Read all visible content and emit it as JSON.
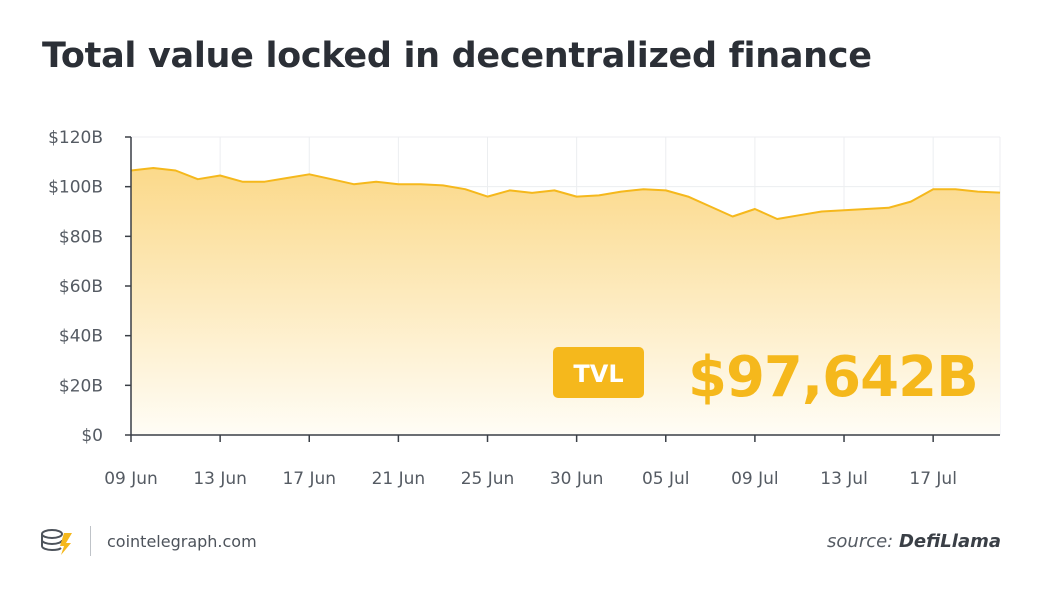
{
  "title": "Total value locked in decentralized finance",
  "badge_label": "TVL",
  "headline_value": "$97,642B",
  "footer": {
    "site": "cointelegraph.com",
    "source_prefix": "source:",
    "source_name": "DefiLlama"
  },
  "colors": {
    "line": "#f5b81c",
    "fill_top": "#fbd98a",
    "fill_bottom": "#fffdf6",
    "badge": "#f5b81c",
    "headline": "#f5b81c"
  },
  "chart_data": {
    "type": "area",
    "title": "Total value locked in decentralized finance",
    "xlabel": "",
    "ylabel": "",
    "ylim": [
      0,
      120
    ],
    "y_unit": "billions USD",
    "y_ticks": [
      0,
      20,
      40,
      60,
      80,
      100,
      120
    ],
    "y_tick_labels": [
      "$0",
      "$20B",
      "$40B",
      "$60B",
      "$80B",
      "$100B",
      "$120B"
    ],
    "x_tick_labels": [
      "09 Jun",
      "13 Jun",
      "17 Jun",
      "21 Jun",
      "25 Jun",
      "30 Jun",
      "05 Jul",
      "09 Jul",
      "13 Jul",
      "17 Jul"
    ],
    "x_tick_day_index": [
      0,
      4,
      8,
      12,
      16,
      20,
      24,
      28,
      32,
      36
    ],
    "grid": true,
    "series": [
      {
        "values": [
          106.5,
          107.5,
          106.5,
          103,
          104.5,
          102,
          102,
          103.5,
          105,
          103,
          101,
          102,
          101,
          101,
          100.5,
          99,
          96,
          98.5,
          97.5,
          98.5,
          96,
          96.5,
          98,
          99,
          98.5,
          96,
          92,
          88,
          91,
          87,
          88.5,
          90,
          90.5,
          91,
          91.5,
          94,
          99,
          99,
          98,
          97.6
        ]
      }
    ]
  }
}
